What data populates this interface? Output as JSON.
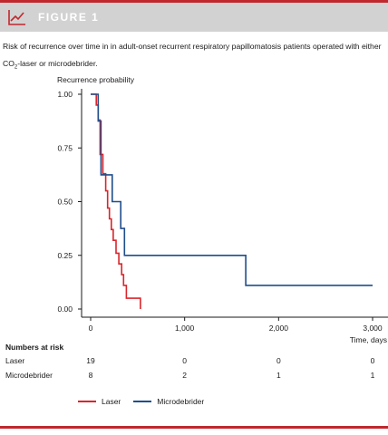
{
  "header": {
    "figure_label": "FIGURE 1"
  },
  "caption": {
    "part1": "Risk of recurrence over time in in adult-onset recurrent respiratory papillomatosis patients operated with either CO",
    "sub": "2",
    "part2": "-laser or microdebrider."
  },
  "colors": {
    "accent": "#c0282d",
    "header_bg": "#d2d2d2",
    "laser": "#d9262c",
    "microdebrider": "#1f4e8c"
  },
  "chart_data": {
    "type": "line",
    "subtype": "kaplan-meier step",
    "ylabel": "Recurrence probability",
    "xlabel": "Time, days",
    "xlim": [
      0,
      3000
    ],
    "ylim": [
      0,
      1
    ],
    "y_ticks": [
      "0.00",
      "0.25",
      "0.50",
      "0.75",
      "1.00"
    ],
    "x_ticks": [
      "0",
      "1,000",
      "2,000",
      "3,000"
    ],
    "series": [
      {
        "name": "Laser",
        "color": "#d9262c",
        "points": [
          [
            0,
            1.0
          ],
          [
            60,
            1.0
          ],
          [
            60,
            0.95
          ],
          [
            80,
            0.95
          ],
          [
            80,
            0.88
          ],
          [
            100,
            0.88
          ],
          [
            100,
            0.72
          ],
          [
            130,
            0.72
          ],
          [
            130,
            0.63
          ],
          [
            160,
            0.63
          ],
          [
            160,
            0.55
          ],
          [
            180,
            0.55
          ],
          [
            180,
            0.47
          ],
          [
            200,
            0.47
          ],
          [
            200,
            0.42
          ],
          [
            220,
            0.42
          ],
          [
            220,
            0.37
          ],
          [
            240,
            0.37
          ],
          [
            240,
            0.32
          ],
          [
            270,
            0.32
          ],
          [
            270,
            0.26
          ],
          [
            300,
            0.26
          ],
          [
            300,
            0.21
          ],
          [
            330,
            0.21
          ],
          [
            330,
            0.16
          ],
          [
            350,
            0.16
          ],
          [
            350,
            0.11
          ],
          [
            380,
            0.11
          ],
          [
            380,
            0.05
          ],
          [
            530,
            0.05
          ],
          [
            530,
            0.0
          ]
        ]
      },
      {
        "name": "Microdebrider",
        "color": "#1f4e8c",
        "points": [
          [
            0,
            1.0
          ],
          [
            80,
            1.0
          ],
          [
            80,
            0.875
          ],
          [
            110,
            0.875
          ],
          [
            110,
            0.625
          ],
          [
            230,
            0.625
          ],
          [
            230,
            0.5
          ],
          [
            320,
            0.5
          ],
          [
            320,
            0.375
          ],
          [
            360,
            0.375
          ],
          [
            360,
            0.25
          ],
          [
            1650,
            0.25
          ],
          [
            1650,
            0.11
          ],
          [
            3000,
            0.11
          ]
        ]
      }
    ],
    "numbers_at_risk": {
      "title": "Numbers at risk",
      "times": [
        "0",
        "1,000",
        "2,000",
        "3,000"
      ],
      "rows": [
        {
          "name": "Laser",
          "values": [
            "19",
            "0",
            "0",
            "0"
          ]
        },
        {
          "name": "Microdebrider",
          "values": [
            "8",
            "2",
            "1",
            "1"
          ]
        }
      ]
    },
    "legend": [
      {
        "name": "Laser",
        "color": "#d9262c"
      },
      {
        "name": "Microdebrider",
        "color": "#1f4e8c"
      }
    ],
    "grid": false,
    "legend_position": "bottom"
  }
}
